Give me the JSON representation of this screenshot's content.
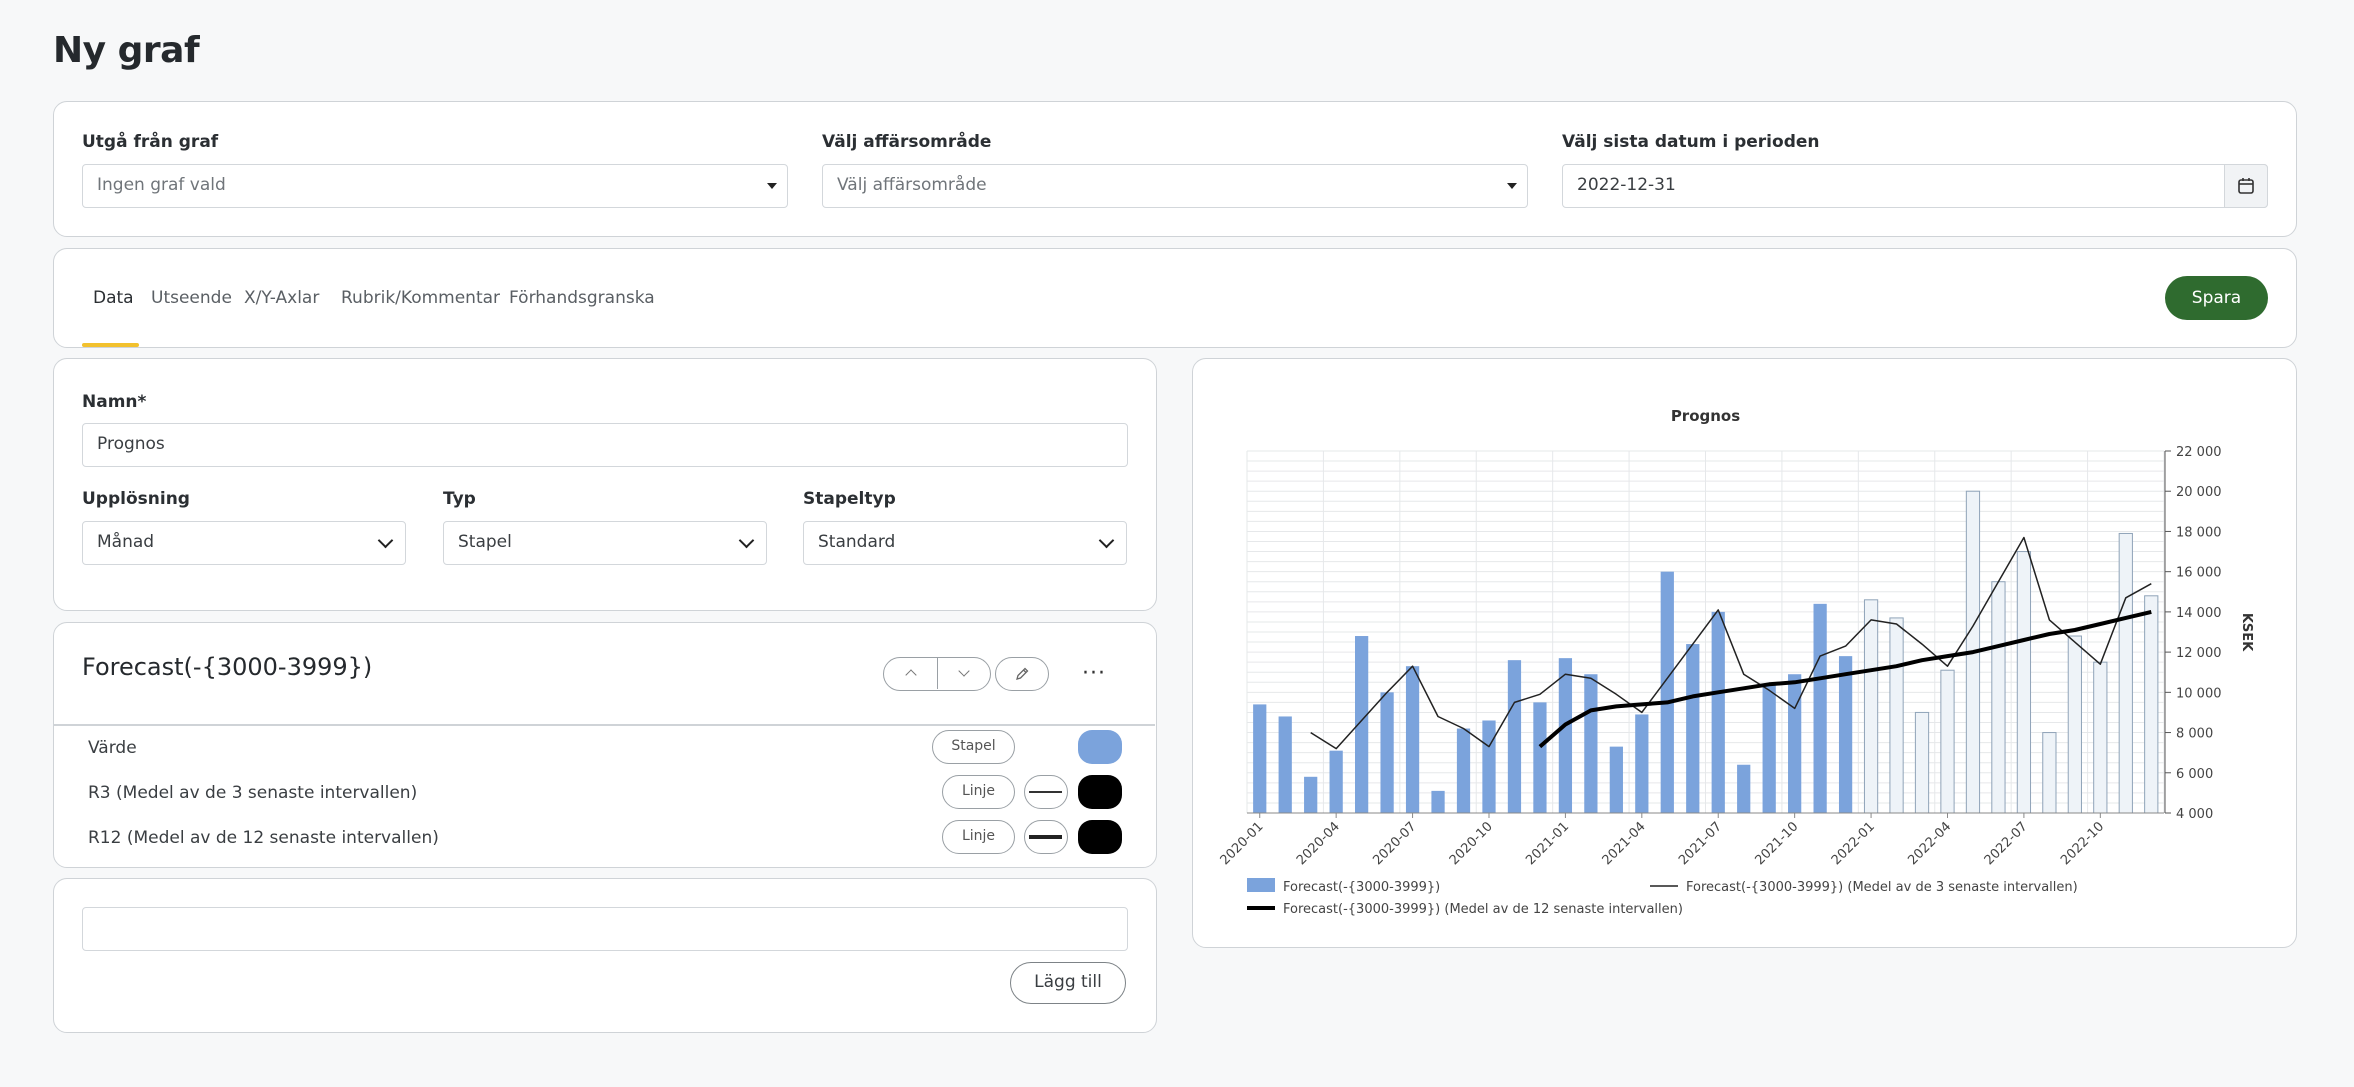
{
  "page": {
    "title": "Ny graf"
  },
  "top_panel": {
    "source_graph": {
      "label": "Utgå från graf",
      "value": "Ingen graf vald"
    },
    "business_area": {
      "label": "Välj affärsområde",
      "value": "Välj affärsområde"
    },
    "last_date": {
      "label": "Välj sista datum i perioden",
      "value": "2022-12-31"
    }
  },
  "tabs": [
    {
      "label": "Data",
      "active": true
    },
    {
      "label": "Utseende",
      "active": false
    },
    {
      "label": "X/Y-Axlar",
      "active": false
    },
    {
      "label": "Rubrik/Kommentar",
      "active": false
    },
    {
      "label": "Förhandsgranska",
      "active": false
    }
  ],
  "save_button": {
    "label": "Spara",
    "color": "#2f6b2f"
  },
  "settings": {
    "name": {
      "label": "Namn*",
      "value": "Prognos"
    },
    "resolution": {
      "label": "Upplösning",
      "value": "Månad"
    },
    "type": {
      "label": "Typ",
      "value": "Stapel"
    },
    "stack_type": {
      "label": "Stapeltyp",
      "value": "Standard"
    }
  },
  "series_card": {
    "title": "Forecast(-{3000-3999})",
    "rows": [
      {
        "label": "Värde",
        "style": "Stapel",
        "color": "#7ba3dc"
      },
      {
        "label": "R3 (Medel av de 3 senaste intervallen)",
        "style": "Linje",
        "color": "#000000"
      },
      {
        "label": "R12 (Medel av de 12 senaste intervallen)",
        "style": "Linje",
        "color": "#000000"
      }
    ]
  },
  "add_card": {
    "input_value": "",
    "button_label": "Lägg till"
  },
  "chart_data": {
    "type": "bar",
    "title": "Prognos",
    "ylabel": "KSEK",
    "xlabel": "",
    "ylim": [
      4000,
      22000
    ],
    "yticks": [
      "22 000",
      "20 000",
      "18 000",
      "16 000",
      "14 000",
      "12 000",
      "10 000",
      "8 000",
      "6 000",
      "4 000"
    ],
    "x_tick_labels": [
      "2020-01",
      "2020-04",
      "2020-07",
      "2020-10",
      "2021-01",
      "2021-04",
      "2021-07",
      "2021-10",
      "2022-01",
      "2022-04",
      "2022-07",
      "2022-10"
    ],
    "categories": [
      "2020-01",
      "2020-02",
      "2020-03",
      "2020-04",
      "2020-05",
      "2020-06",
      "2020-07",
      "2020-08",
      "2020-09",
      "2020-10",
      "2020-11",
      "2020-12",
      "2021-01",
      "2021-02",
      "2021-03",
      "2021-04",
      "2021-05",
      "2021-06",
      "2021-07",
      "2021-08",
      "2021-09",
      "2021-10",
      "2021-11",
      "2021-12",
      "2022-01",
      "2022-02",
      "2022-03",
      "2022-04",
      "2022-05",
      "2022-06",
      "2022-07",
      "2022-08",
      "2022-09",
      "2022-10",
      "2022-11",
      "2022-12"
    ],
    "grid": true,
    "legend_position": "bottom",
    "series": [
      {
        "name": "Forecast(-{3000-3999})",
        "kind": "bar",
        "color": "#7ba3dc",
        "forecast_from_index": 24,
        "forecast_color": "#eef3f8",
        "values": [
          9400,
          8800,
          5800,
          7100,
          12800,
          10000,
          11300,
          5100,
          8200,
          8600,
          11600,
          9500,
          11700,
          10900,
          7300,
          8900,
          16000,
          12400,
          14000,
          6400,
          10400,
          10900,
          14400,
          11800,
          14600,
          13700,
          9000,
          11100,
          20000,
          15500,
          17000,
          8000,
          12800,
          11500,
          17900,
          14800
        ]
      },
      {
        "name": "Forecast(-{3000-3999}) (Medel av de 3 senaste intervallen)",
        "kind": "line",
        "color": "#222222",
        "width": 1.5,
        "values": [
          null,
          null,
          8000,
          7200,
          8600,
          10000,
          11300,
          8800,
          8200,
          7300,
          9500,
          9900,
          10900,
          10700,
          9900,
          9000,
          10700,
          12400,
          14100,
          10900,
          10100,
          9200,
          11800,
          12300,
          13600,
          13400,
          12400,
          11300,
          13300,
          15500,
          17700,
          13600,
          12500,
          11400,
          14700,
          15400
        ]
      },
      {
        "name": "Forecast(-{3000-3999}) (Medel av de 12 senaste intervallen)",
        "kind": "line",
        "color": "#000000",
        "width": 4,
        "values": [
          null,
          null,
          null,
          null,
          null,
          null,
          null,
          null,
          null,
          null,
          null,
          7300,
          8400,
          9100,
          9300,
          9400,
          9500,
          9800,
          10000,
          10200,
          10400,
          10500,
          10700,
          10900,
          11100,
          11300,
          11600,
          11800,
          12000,
          12300,
          12600,
          12900,
          13100,
          13400,
          13700,
          14000
        ]
      }
    ]
  }
}
